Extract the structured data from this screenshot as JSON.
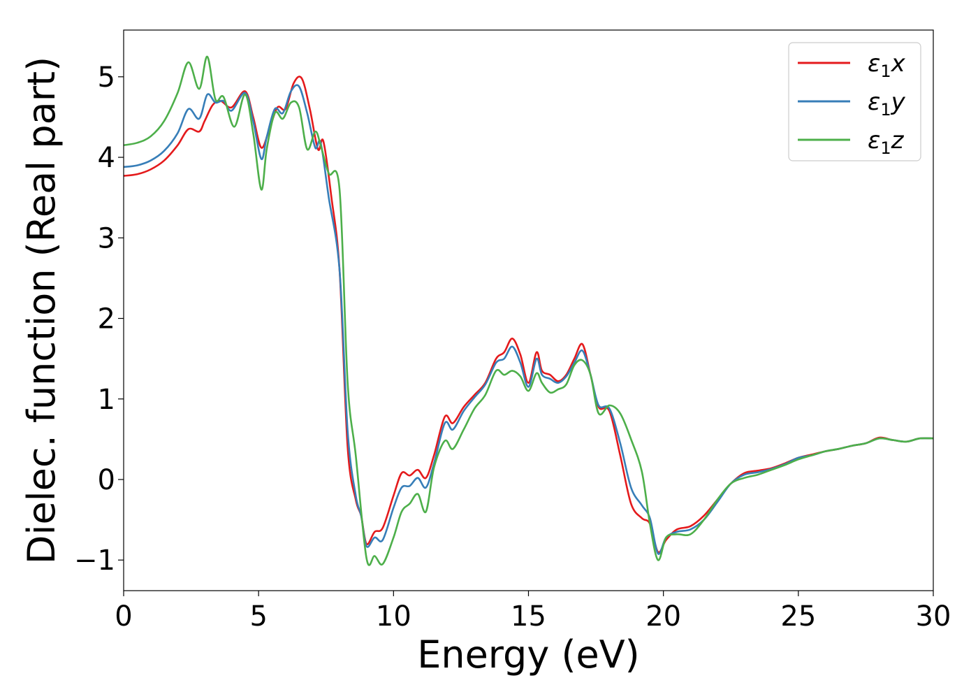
{
  "chart_data": {
    "type": "line",
    "title": "",
    "xlabel": "Energy (eV)",
    "ylabel": "Dielec. function (Real part)",
    "xlim": [
      0,
      30
    ],
    "ylim": [
      -1.38,
      5.58
    ],
    "xticks": [
      0,
      5,
      10,
      15,
      20,
      25,
      30
    ],
    "yticks": [
      -1,
      0,
      1,
      2,
      3,
      4,
      5
    ],
    "xtick_labels": [
      "0",
      "5",
      "10",
      "15",
      "20",
      "25",
      "30"
    ],
    "ytick_labels": [
      "−1",
      "0",
      "1",
      "2",
      "3",
      "4",
      "5"
    ],
    "grid": false,
    "legend_position": "top-right",
    "series": [
      {
        "name": "ε1x",
        "symbol": "ε",
        "sub": "1",
        "axis": "x",
        "color": "#e41a1c",
        "x": [
          0,
          0.5,
          1,
          1.5,
          2,
          2.4,
          2.8,
          3.0,
          3.3,
          3.6,
          4.0,
          4.5,
          4.8,
          5.1,
          5.4,
          5.7,
          6.0,
          6.3,
          6.6,
          6.9,
          7.2,
          7.4,
          7.7,
          8.0,
          8.3,
          8.6,
          8.8,
          9.0,
          9.3,
          9.6,
          10.0,
          10.3,
          10.6,
          10.9,
          11.2,
          11.5,
          11.9,
          12.2,
          12.6,
          13.0,
          13.4,
          13.8,
          14.1,
          14.4,
          14.7,
          15.0,
          15.3,
          15.5,
          15.8,
          16.1,
          16.4,
          16.7,
          17.0,
          17.3,
          17.6,
          18.0,
          18.4,
          18.8,
          19.2,
          19.5,
          19.8,
          20.1,
          20.5,
          21.0,
          21.5,
          22.0,
          22.5,
          23.0,
          23.5,
          24.0,
          24.5,
          25.0,
          25.5,
          26.0,
          26.5,
          27.0,
          27.5,
          28.0,
          28.5,
          29.0,
          29.5,
          30.0
        ],
        "values": [
          3.77,
          3.79,
          3.85,
          3.96,
          4.15,
          4.35,
          4.32,
          4.45,
          4.65,
          4.7,
          4.62,
          4.82,
          4.5,
          4.12,
          4.35,
          4.62,
          4.6,
          4.92,
          4.98,
          4.6,
          4.1,
          4.2,
          3.5,
          2.6,
          0.4,
          -0.25,
          -0.45,
          -0.8,
          -0.65,
          -0.6,
          -0.2,
          0.08,
          0.05,
          0.12,
          0.02,
          0.3,
          0.78,
          0.7,
          0.9,
          1.05,
          1.2,
          1.5,
          1.58,
          1.75,
          1.55,
          1.2,
          1.58,
          1.35,
          1.3,
          1.22,
          1.3,
          1.5,
          1.68,
          1.3,
          0.9,
          0.85,
          0.3,
          -0.3,
          -0.48,
          -0.55,
          -0.9,
          -0.75,
          -0.62,
          -0.58,
          -0.45,
          -0.25,
          -0.05,
          0.08,
          0.11,
          0.14,
          0.2,
          0.27,
          0.31,
          0.35,
          0.38,
          0.42,
          0.45,
          0.52,
          0.49,
          0.47,
          0.51,
          0.51
        ]
      },
      {
        "name": "ε1y",
        "symbol": "ε",
        "sub": "1",
        "axis": "y",
        "color": "#377eb8",
        "x": [
          0,
          0.5,
          1,
          1.5,
          2,
          2.4,
          2.8,
          3.1,
          3.4,
          3.7,
          4.0,
          4.5,
          4.8,
          5.1,
          5.3,
          5.6,
          5.9,
          6.2,
          6.5,
          6.8,
          7.1,
          7.3,
          7.6,
          8.0,
          8.3,
          8.6,
          8.8,
          9.0,
          9.3,
          9.6,
          10.0,
          10.3,
          10.6,
          10.9,
          11.2,
          11.5,
          11.9,
          12.2,
          12.6,
          13.0,
          13.4,
          13.8,
          14.1,
          14.4,
          14.7,
          15.0,
          15.3,
          15.5,
          15.8,
          16.1,
          16.4,
          16.7,
          17.0,
          17.3,
          17.6,
          18.0,
          18.4,
          18.8,
          19.2,
          19.5,
          19.8,
          20.1,
          20.5,
          21.0,
          21.5,
          22.0,
          22.5,
          23.0,
          23.5,
          24.0,
          24.5,
          25.0,
          25.5,
          26.0,
          26.5,
          27.0,
          27.5,
          28.0,
          28.5,
          29.0,
          29.5,
          30.0
        ],
        "values": [
          3.88,
          3.9,
          3.96,
          4.08,
          4.3,
          4.6,
          4.48,
          4.78,
          4.68,
          4.7,
          4.58,
          4.8,
          4.45,
          3.98,
          4.25,
          4.6,
          4.55,
          4.82,
          4.88,
          4.55,
          4.12,
          4.18,
          3.5,
          2.6,
          0.6,
          -0.2,
          -0.45,
          -0.83,
          -0.72,
          -0.75,
          -0.35,
          -0.1,
          -0.08,
          0.02,
          -0.1,
          0.2,
          0.7,
          0.62,
          0.85,
          1.02,
          1.18,
          1.45,
          1.5,
          1.65,
          1.45,
          1.15,
          1.5,
          1.3,
          1.25,
          1.2,
          1.28,
          1.45,
          1.6,
          1.3,
          0.92,
          0.88,
          0.45,
          -0.1,
          -0.32,
          -0.48,
          -0.92,
          -0.72,
          -0.65,
          -0.62,
          -0.5,
          -0.28,
          -0.05,
          0.06,
          0.09,
          0.13,
          0.19,
          0.27,
          0.3,
          0.35,
          0.38,
          0.42,
          0.45,
          0.51,
          0.49,
          0.47,
          0.51,
          0.51
        ]
      },
      {
        "name": "ε1z",
        "symbol": "ε",
        "sub": "1",
        "axis": "z",
        "color": "#4daf4a",
        "x": [
          0,
          0.5,
          1,
          1.5,
          2,
          2.4,
          2.8,
          3.1,
          3.4,
          3.7,
          4.1,
          4.5,
          4.8,
          5.1,
          5.3,
          5.6,
          5.9,
          6.2,
          6.5,
          6.8,
          7.1,
          7.3,
          7.6,
          8.0,
          8.3,
          8.6,
          9.0,
          9.3,
          9.6,
          10.0,
          10.3,
          10.6,
          10.9,
          11.2,
          11.5,
          11.9,
          12.2,
          12.6,
          13.0,
          13.4,
          13.8,
          14.1,
          14.4,
          14.7,
          15.0,
          15.3,
          15.5,
          15.8,
          16.1,
          16.4,
          16.7,
          17.0,
          17.3,
          17.6,
          18.0,
          18.4,
          18.8,
          19.2,
          19.5,
          19.8,
          20.1,
          20.5,
          21.0,
          21.5,
          22.0,
          22.5,
          23.0,
          23.5,
          24.0,
          24.5,
          25.0,
          25.5,
          26.0,
          26.5,
          27.0,
          27.5,
          28.0,
          28.5,
          29.0,
          29.5,
          30.0
        ],
        "values": [
          4.15,
          4.18,
          4.26,
          4.45,
          4.8,
          5.18,
          4.85,
          5.25,
          4.72,
          4.75,
          4.38,
          4.78,
          4.3,
          3.6,
          4.1,
          4.55,
          4.48,
          4.68,
          4.62,
          4.1,
          4.32,
          4.15,
          3.8,
          3.6,
          1.2,
          0.3,
          -0.98,
          -0.95,
          -1.05,
          -0.72,
          -0.4,
          -0.3,
          -0.18,
          -0.4,
          0.15,
          0.48,
          0.38,
          0.62,
          0.88,
          1.05,
          1.35,
          1.3,
          1.35,
          1.28,
          1.1,
          1.32,
          1.2,
          1.08,
          1.12,
          1.18,
          1.42,
          1.48,
          1.3,
          0.82,
          0.92,
          0.82,
          0.5,
          0.1,
          -0.55,
          -1.0,
          -0.72,
          -0.68,
          -0.68,
          -0.5,
          -0.25,
          -0.05,
          0.02,
          0.06,
          0.12,
          0.18,
          0.25,
          0.3,
          0.35,
          0.38,
          0.42,
          0.45,
          0.51,
          0.49,
          0.47,
          0.51,
          0.51
        ]
      }
    ]
  }
}
